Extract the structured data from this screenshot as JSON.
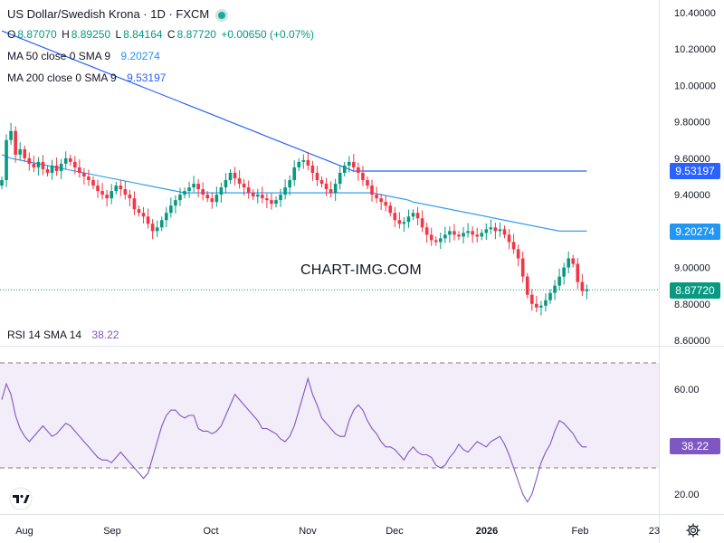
{
  "header": {
    "symbol_title": "US Dollar/Swedish Krona · 1D · FXCM",
    "ohlc": {
      "o_label": "O",
      "o": "8.87070",
      "h_label": "H",
      "h": "8.89250",
      "l_label": "L",
      "l": "8.84164",
      "c_label": "C",
      "c": "8.87720",
      "change": "+0.00650 (+0.07%)"
    },
    "ma50": {
      "label": "MA 50 close 0 SMA 9",
      "value": "9.20274"
    },
    "ma200": {
      "label": "MA 200 close 0 SMA 9",
      "value": "9.53197"
    }
  },
  "rsi_legend": {
    "label": "RSI 14 SMA 14",
    "value": "38.22"
  },
  "watermark": "CHART-IMG.COM",
  "price_tags": {
    "ma200": "9.53197",
    "ma50": "9.20274",
    "last": "8.87720",
    "rsi": "38.22"
  },
  "colors": {
    "up": "#089981",
    "down": "#f23645",
    "ma50": "#2196f3",
    "ma200": "#2962ff",
    "rsi": "#7e57c2",
    "rsi_band": "#ede7f6",
    "last_price": "#089981",
    "rsi_tag": "#7e57c2"
  },
  "chart_data": [
    {
      "type": "candlestick",
      "title": "US Dollar/Swedish Krona · 1D · FXCM",
      "ylim": [
        8.6,
        10.4
      ],
      "y_ticks": [
        "10.40000",
        "10.20000",
        "10.00000",
        "9.80000",
        "9.60000",
        "9.40000",
        "9.20000",
        "9.00000",
        "8.80000",
        "8.60000"
      ],
      "x_ticks": [
        "Aug",
        "Sep",
        "Oct",
        "Nov",
        "Dec",
        "2026",
        "Feb",
        "23"
      ],
      "close": [
        9.48,
        9.7,
        9.75,
        9.62,
        9.65,
        9.6,
        9.57,
        9.55,
        9.58,
        9.54,
        9.52,
        9.56,
        9.53,
        9.57,
        9.6,
        9.58,
        9.55,
        9.52,
        9.5,
        9.48,
        9.45,
        9.42,
        9.4,
        9.38,
        9.42,
        9.45,
        9.43,
        9.4,
        9.38,
        9.32,
        9.3,
        9.28,
        9.24,
        9.2,
        9.22,
        9.26,
        9.3,
        9.34,
        9.37,
        9.4,
        9.42,
        9.44,
        9.46,
        9.43,
        9.4,
        9.38,
        9.36,
        9.4,
        9.44,
        9.48,
        9.52,
        9.49,
        9.46,
        9.44,
        9.41,
        9.39,
        9.4,
        9.38,
        9.37,
        9.35,
        9.37,
        9.4,
        9.44,
        9.48,
        9.55,
        9.58,
        9.59,
        9.56,
        9.52,
        9.48,
        9.46,
        9.43,
        9.41,
        9.46,
        9.52,
        9.56,
        9.58,
        9.55,
        9.52,
        9.48,
        9.45,
        9.4,
        9.38,
        9.36,
        9.34,
        9.3,
        9.26,
        9.24,
        9.25,
        9.28,
        9.3,
        9.27,
        9.22,
        9.18,
        9.15,
        9.14,
        9.16,
        9.18,
        9.2,
        9.18,
        9.17,
        9.19,
        9.2,
        9.18,
        9.17,
        9.19,
        9.21,
        9.22,
        9.2,
        9.21,
        9.18,
        9.14,
        9.1,
        9.05,
        8.95,
        8.85,
        8.8,
        8.78,
        8.79,
        8.82,
        8.86,
        8.9,
        8.95,
        9.0,
        9.05,
        9.02,
        8.92,
        8.87,
        8.88
      ],
      "ma50": [
        9.62,
        9.61,
        9.6,
        9.595,
        9.59,
        9.585,
        9.58,
        9.575,
        9.57,
        9.565,
        9.56,
        9.555,
        9.55,
        9.545,
        9.54,
        9.535,
        9.53,
        9.525,
        9.52,
        9.515,
        9.51,
        9.505,
        9.5,
        9.495,
        9.49,
        9.485,
        9.48,
        9.475,
        9.47,
        9.465,
        9.46,
        9.455,
        9.45,
        9.445,
        9.44,
        9.435,
        9.43,
        9.425,
        9.42,
        9.415,
        9.41,
        9.41,
        9.41,
        9.41,
        9.41,
        9.41,
        9.41,
        9.41,
        9.41,
        9.41,
        9.41,
        9.41,
        9.41,
        9.41,
        9.41,
        9.41,
        9.41,
        9.41,
        9.41,
        9.41,
        9.41,
        9.41,
        9.41,
        9.41,
        9.41,
        9.41,
        9.41,
        9.41,
        9.41,
        9.41,
        9.41,
        9.41,
        9.41,
        9.41,
        9.41,
        9.41,
        9.41,
        9.41,
        9.41,
        9.41,
        9.41,
        9.41,
        9.405,
        9.4,
        9.395,
        9.39,
        9.385,
        9.38,
        9.375,
        9.37,
        9.36,
        9.355,
        9.35,
        9.345,
        9.34,
        9.335,
        9.33,
        9.325,
        9.32,
        9.315,
        9.31,
        9.305,
        9.3,
        9.295,
        9.29,
        9.285,
        9.28,
        9.275,
        9.27,
        9.265,
        9.26,
        9.255,
        9.25,
        9.245,
        9.24,
        9.235,
        9.23,
        9.225,
        9.22,
        9.215,
        9.21,
        9.205,
        9.2,
        9.2,
        9.2,
        9.2,
        9.2,
        9.2,
        9.2
      ],
      "ma200": [
        10.3,
        10.29,
        10.28,
        10.27,
        10.26,
        10.25,
        10.24,
        10.23,
        10.22,
        10.21,
        10.2,
        10.19,
        10.18,
        10.17,
        10.16,
        10.15,
        10.14,
        10.13,
        10.12,
        10.11,
        10.1,
        10.09,
        10.08,
        10.07,
        10.06,
        10.05,
        10.04,
        10.03,
        10.02,
        10.01,
        10.0,
        9.99,
        9.98,
        9.97,
        9.96,
        9.95,
        9.94,
        9.93,
        9.92,
        9.91,
        9.9,
        9.89,
        9.88,
        9.87,
        9.86,
        9.85,
        9.84,
        9.83,
        9.82,
        9.81,
        9.8,
        9.79,
        9.78,
        9.77,
        9.76,
        9.75,
        9.74,
        9.73,
        9.72,
        9.71,
        9.7,
        9.69,
        9.68,
        9.67,
        9.66,
        9.65,
        9.64,
        9.63,
        9.62,
        9.61,
        9.6,
        9.59,
        9.58,
        9.57,
        9.56,
        9.55,
        9.54,
        9.53,
        9.53,
        9.53,
        9.53,
        9.53,
        9.53,
        9.53,
        9.53,
        9.53,
        9.53,
        9.53,
        9.53,
        9.53,
        9.53,
        9.53,
        9.53,
        9.53,
        9.53,
        9.53,
        9.53,
        9.53,
        9.53,
        9.53,
        9.53,
        9.53,
        9.53,
        9.53,
        9.53,
        9.53,
        9.53,
        9.53,
        9.53,
        9.53,
        9.53,
        9.53,
        9.53,
        9.53,
        9.53,
        9.53,
        9.53,
        9.53,
        9.53,
        9.53,
        9.53,
        9.53,
        9.53,
        9.53,
        9.53,
        9.53,
        9.53,
        9.53,
        9.53
      ],
      "last_price": 8.8772
    },
    {
      "type": "line",
      "title": "RSI 14 SMA 14",
      "ylim": [
        10,
        75
      ],
      "y_ticks": [
        "60.00",
        "40.00",
        "20.00"
      ],
      "band": [
        30,
        70
      ],
      "values": [
        56,
        62,
        58,
        50,
        45,
        42,
        40,
        42,
        44,
        46,
        44,
        42,
        43,
        45,
        47,
        46,
        44,
        42,
        40,
        38,
        36,
        34,
        33,
        33,
        32,
        34,
        36,
        34,
        32,
        30,
        28,
        26,
        28,
        34,
        40,
        46,
        50,
        52,
        52,
        50,
        49,
        50,
        50,
        45,
        44,
        44,
        43,
        44,
        46,
        50,
        54,
        58,
        56,
        54,
        52,
        50,
        48,
        45,
        45,
        44,
        43,
        41,
        40,
        42,
        46,
        52,
        58,
        64,
        58,
        54,
        49,
        47,
        45,
        43,
        42,
        42,
        48,
        52,
        54,
        52,
        48,
        45,
        43,
        40,
        38,
        38,
        37,
        35,
        33,
        36,
        38,
        36,
        35,
        35,
        34,
        31,
        30,
        31,
        34,
        36,
        39,
        37,
        36,
        38,
        40,
        39,
        38,
        40,
        41,
        42,
        39,
        35,
        30,
        25,
        20,
        17,
        20,
        26,
        32,
        36,
        39,
        44,
        48,
        47,
        45,
        43,
        40,
        38,
        38
      ]
    }
  ]
}
